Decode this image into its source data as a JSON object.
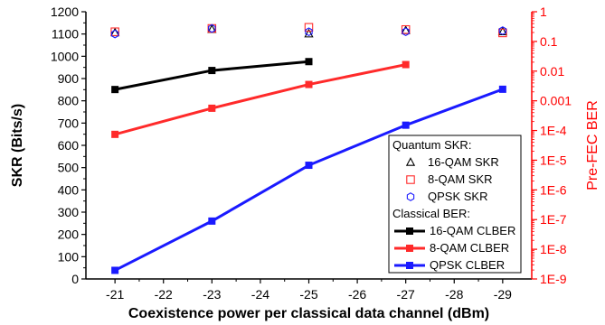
{
  "chart_data": {
    "type": "line",
    "xlabel": "Coexistence power per classical data channel (dBm)",
    "ylabel": "SKR (Bits/s)",
    "y2label": "Pre-FEC BER",
    "x_ticks": [
      -21,
      -22,
      -23,
      -24,
      -25,
      -26,
      -27,
      -28,
      -29
    ],
    "x_tick_labels": [
      "-21",
      "-22",
      "-23",
      "-24",
      "-25",
      "-26",
      "-27",
      "-28",
      "-29"
    ],
    "xlim": [
      -20.4,
      -29.6
    ],
    "ylim": [
      0,
      1200
    ],
    "y_ticks": [
      0,
      100,
      200,
      300,
      400,
      500,
      600,
      700,
      800,
      900,
      1000,
      1100,
      1200
    ],
    "y_tick_labels": [
      "0",
      "100",
      "200",
      "300",
      "400",
      "500",
      "600",
      "700",
      "800",
      "900",
      "1000",
      "1100",
      "1200"
    ],
    "y2_scale": "log",
    "y2lim": [
      1e-09,
      1
    ],
    "y2_tick_labels": [
      "1",
      "0.1",
      "0.01",
      "0.001",
      "1E-4",
      "1E-5",
      "1E-6",
      "1E-7",
      "1E-8",
      "1E-9"
    ],
    "y2_tick_values": [
      1,
      0.1,
      0.01,
      0.001,
      0.0001,
      1e-05,
      1e-06,
      1e-07,
      1e-08,
      1e-09
    ],
    "grid": false,
    "legend": {
      "placement": "bottom-right",
      "quantum_header": "Quantum SKR:",
      "classical_header": "Classical BER:"
    },
    "colors": {
      "black": "#000000",
      "red": "#ff2a2a",
      "blue": "#1a1aff",
      "right_axis": "#ff0000"
    },
    "series": [
      {
        "name": "16-QAM SKR",
        "group": "quantum",
        "axis": "left",
        "marker": "triangle-open",
        "color": "#000000",
        "x": [
          -21,
          -23,
          -25,
          -27,
          -29
        ],
        "values": [
          1105,
          1120,
          1100,
          1115,
          1110
        ]
      },
      {
        "name": "8-QAM SKR",
        "group": "quantum",
        "axis": "left",
        "marker": "square-open",
        "color": "#ff2a2a",
        "x": [
          -21,
          -23,
          -25,
          -27,
          -29
        ],
        "values": [
          1110,
          1125,
          1130,
          1120,
          1105
        ]
      },
      {
        "name": "QPSK SKR",
        "group": "quantum",
        "axis": "left",
        "marker": "circle-open",
        "color": "#1a1aff",
        "x": [
          -21,
          -23,
          -25,
          -27,
          -29
        ],
        "values": [
          1100,
          1125,
          1110,
          1110,
          1115
        ]
      },
      {
        "name": "16-QAM CLBER",
        "group": "classical",
        "axis": "right",
        "marker": "square-filled",
        "color": "#000000",
        "x": [
          -21,
          -23,
          -25
        ],
        "values": [
          0.0024,
          0.0105,
          0.0209
        ]
      },
      {
        "name": "8-QAM CLBER",
        "group": "classical",
        "axis": "right",
        "marker": "square-filled",
        "color": "#ff2a2a",
        "x": [
          -21,
          -23,
          -25,
          -27
        ],
        "values": [
          7.41e-05,
          0.000562,
          0.00355,
          0.0166
        ]
      },
      {
        "name": "QPSK CLBER",
        "group": "classical",
        "axis": "right",
        "marker": "square-filled",
        "color": "#1a1aff",
        "x": [
          -21,
          -23,
          -25,
          -27,
          -29
        ],
        "values": 1.95e-09
      }
    ]
  }
}
